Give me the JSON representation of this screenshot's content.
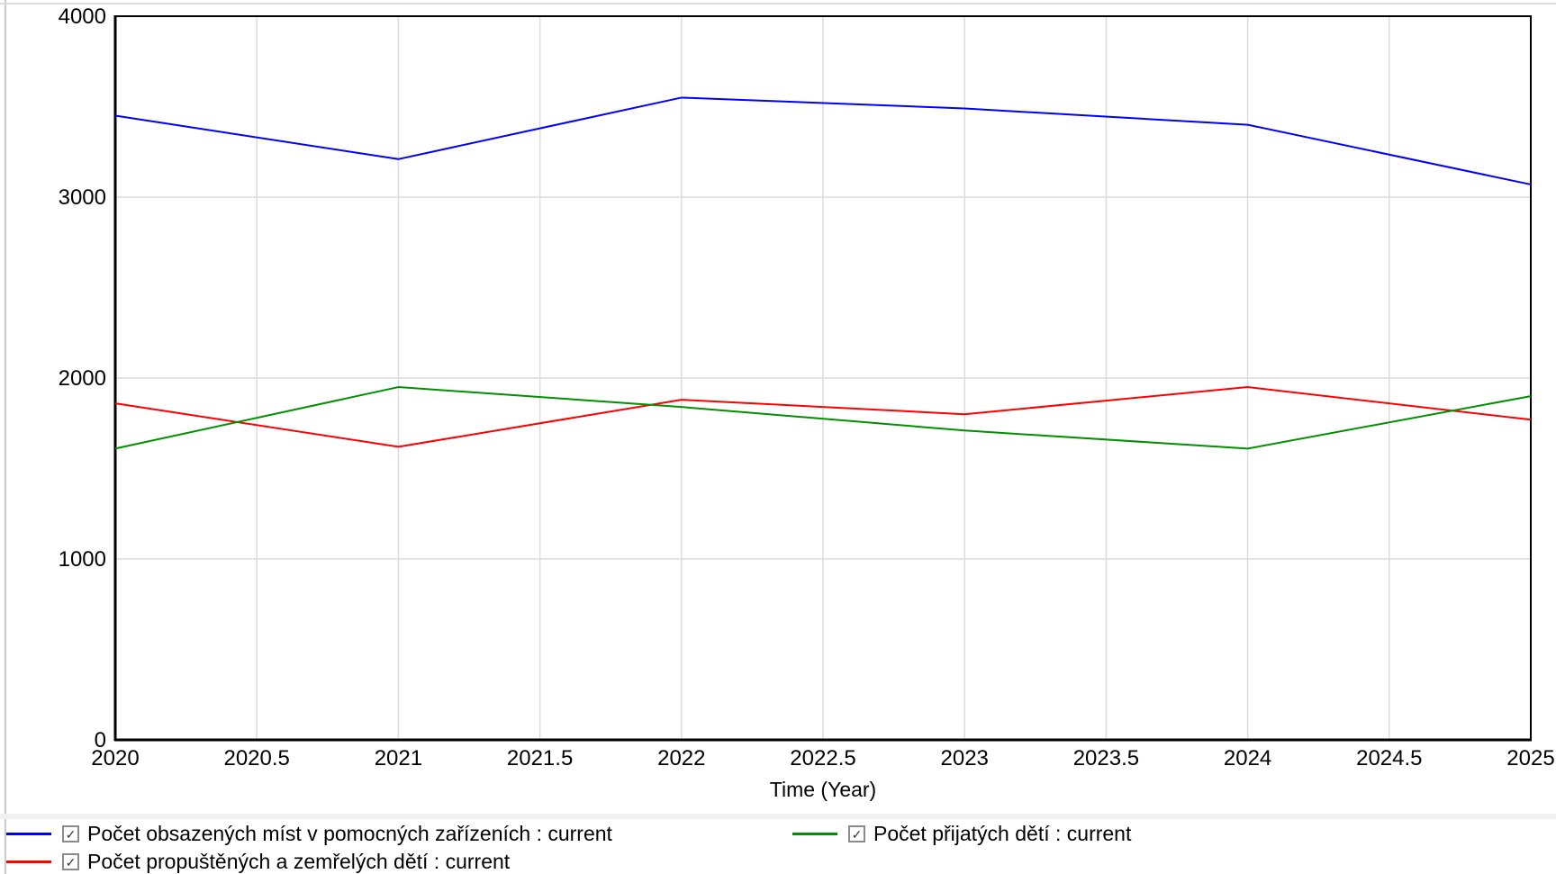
{
  "chart_data": {
    "type": "line",
    "title": "",
    "xlabel": "Time (Year)",
    "ylabel": "",
    "xlim": [
      2020,
      2025
    ],
    "ylim": [
      0,
      4000
    ],
    "grid": true,
    "grid_color": "#dcdcdc",
    "axis_color": "#000000",
    "x": [
      2020,
      2021,
      2022,
      2023,
      2024,
      2025
    ],
    "series": [
      {
        "name": "Počet obsazených míst v pomocných zařízeních : current",
        "color": "#0000ff",
        "values": [
          3450,
          3210,
          3550,
          3490,
          3400,
          3070
        ]
      },
      {
        "name": "Počet propuštěných a zemřelých dětí : current",
        "color": "#ff0000",
        "values": [
          1860,
          1620,
          1880,
          1800,
          1950,
          1770
        ]
      },
      {
        "name": "Počet přijatých dětí : current",
        "color": "#009000",
        "values": [
          1610,
          1950,
          1840,
          1710,
          1610,
          1900
        ]
      }
    ],
    "xticks": {
      "values": [
        2020,
        2020.5,
        2021,
        2021.5,
        2022,
        2022.5,
        2023,
        2023.5,
        2024,
        2024.5,
        2025
      ],
      "labels": [
        "2020",
        "2020.5",
        "2021",
        "2021.5",
        "2022",
        "2022.5",
        "2023",
        "2023.5",
        "2024",
        "2024.5",
        "2025"
      ]
    },
    "yticks": {
      "values": [
        0,
        1000,
        2000,
        3000,
        4000
      ],
      "labels": [
        "0",
        "1000",
        "2000",
        "3000",
        "4000"
      ]
    },
    "x_gridlines": [
      2020.5,
      2021,
      2021.5,
      2022,
      2022.5,
      2023,
      2023.5,
      2024,
      2024.5
    ],
    "y_gridlines": [
      1000,
      2000,
      3000
    ],
    "legend_position": "bottom"
  },
  "legend": {
    "check_glyph": "✓",
    "columns": [
      [
        {
          "label": "Počet obsazených míst v pomocných zařízeních : current",
          "color": "#0000ff",
          "checked": true
        },
        {
          "label": "Počet propuštěných a zemřelých dětí : current",
          "color": "#ff0000",
          "checked": true
        }
      ],
      [
        {
          "label": "Počet přijatých dětí : current",
          "color": "#009000",
          "checked": true
        }
      ]
    ]
  }
}
